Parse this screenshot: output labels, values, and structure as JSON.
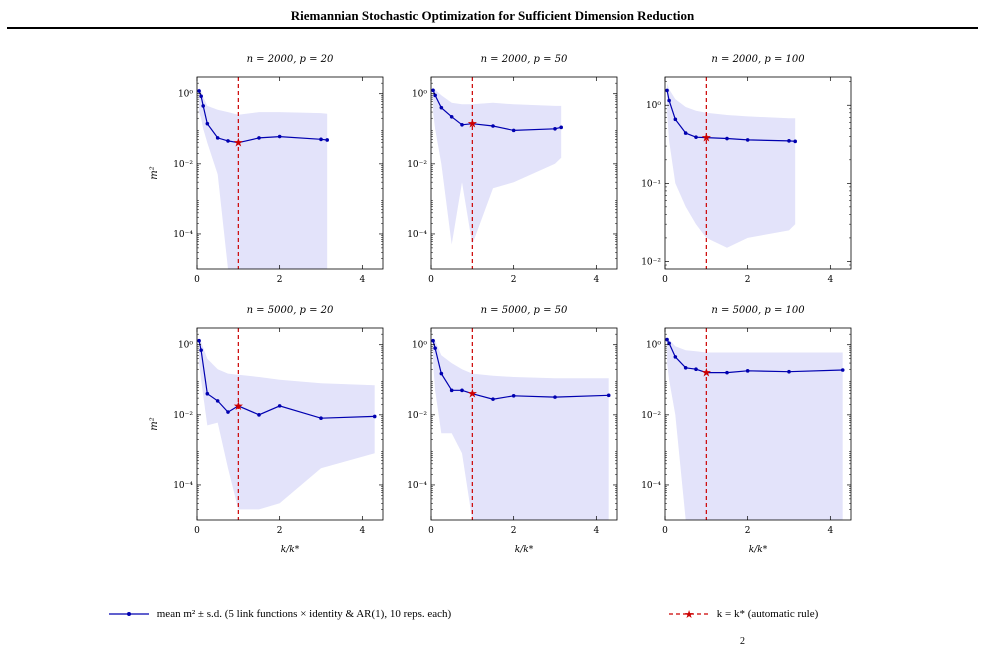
{
  "page": {
    "title": "Riemannian Stochastic Optimization for Sufficient Dimension Reduction",
    "bottom_fragment": "2"
  },
  "colors": {
    "series_line": "#0000b0",
    "band_fill": "#e3e3fa",
    "reference_line": "#cc0000"
  },
  "legend": {
    "mean_label": "mean m² ± s.d. (5 link functions × identity & AR(1), 10 reps. each)",
    "ref_label": "k = k* (automatic rule)"
  },
  "chart_data": [
    {
      "type": "line",
      "title": "n = 2000,  p = 20",
      "ylabel": "m²",
      "xlabel": "",
      "yscale": "log",
      "ylim": [
        1e-05,
        3
      ],
      "xlim": [
        0,
        4.5
      ],
      "xticks": [
        0,
        2,
        4
      ],
      "yticks": [
        1,
        0.01,
        0.0001
      ],
      "ytick_labels": [
        "10⁰",
        "10⁻²",
        "10⁻⁴"
      ],
      "reference_x": 1,
      "series": [
        {
          "x": [
            0.05,
            0.1,
            0.15,
            0.25,
            0.5,
            0.75,
            1,
            1.5,
            2,
            3,
            3.15
          ],
          "y": [
            1.2,
            0.85,
            0.45,
            0.14,
            0.055,
            0.045,
            0.04,
            0.055,
            0.06,
            0.05,
            0.048
          ],
          "lower": [
            0.3,
            0.2,
            0.1,
            0.04,
            0.005,
            1e-05,
            1e-05,
            1e-05,
            1e-05,
            1e-05,
            1e-05
          ],
          "upper": [
            1.5,
            1.2,
            0.8,
            0.45,
            0.35,
            0.3,
            0.25,
            0.3,
            0.3,
            0.28,
            0.27
          ]
        }
      ]
    },
    {
      "type": "line",
      "title": "n = 2000,  p = 50",
      "ylabel": "",
      "xlabel": "",
      "yscale": "log",
      "ylim": [
        1e-05,
        3
      ],
      "xlim": [
        0,
        4.5
      ],
      "xticks": [
        0,
        2,
        4
      ],
      "yticks": [
        1,
        0.01,
        0.0001
      ],
      "ytick_labels": [
        "10⁰",
        "10⁻²",
        "10⁻⁴"
      ],
      "reference_x": 1,
      "series": [
        {
          "x": [
            0.05,
            0.1,
            0.25,
            0.5,
            0.75,
            1,
            1.5,
            2,
            3,
            3.15
          ],
          "y": [
            1.25,
            0.9,
            0.4,
            0.22,
            0.13,
            0.14,
            0.12,
            0.09,
            0.1,
            0.11
          ],
          "lower": [
            0.3,
            0.1,
            0.01,
            5e-05,
            0.003,
            5e-05,
            0.002,
            0.003,
            0.01,
            0.015
          ],
          "upper": [
            1.5,
            1.3,
            0.9,
            0.55,
            0.5,
            0.5,
            0.55,
            0.5,
            0.45,
            0.45
          ]
        }
      ]
    },
    {
      "type": "line",
      "title": "n = 2000,  p = 100",
      "ylabel": "",
      "xlabel": "",
      "yscale": "log",
      "ylim": [
        0.008,
        2.3
      ],
      "xlim": [
        0,
        4.5
      ],
      "xticks": [
        0,
        2,
        4
      ],
      "yticks": [
        1,
        0.1,
        0.01
      ],
      "ytick_labels": [
        "10⁰",
        "10⁻¹",
        "10⁻²"
      ],
      "reference_x": 1,
      "series": [
        {
          "x": [
            0.05,
            0.1,
            0.25,
            0.5,
            0.75,
            1,
            1.5,
            2,
            3,
            3.15
          ],
          "y": [
            1.55,
            1.15,
            0.66,
            0.44,
            0.39,
            0.385,
            0.375,
            0.36,
            0.35,
            0.345
          ],
          "lower": [
            0.8,
            0.35,
            0.1,
            0.05,
            0.03,
            0.02,
            0.015,
            0.02,
            0.025,
            0.03
          ],
          "upper": [
            1.9,
            1.6,
            1.2,
            0.95,
            0.85,
            0.8,
            0.75,
            0.72,
            0.68,
            0.68
          ]
        }
      ]
    },
    {
      "type": "line",
      "title": "n = 5000,  p = 20",
      "ylabel": "m²",
      "xlabel": "k/k*",
      "yscale": "log",
      "ylim": [
        1e-05,
        3
      ],
      "xlim": [
        0,
        4.5
      ],
      "xticks": [
        0,
        2,
        4
      ],
      "yticks": [
        1,
        0.01,
        0.0001
      ],
      "ytick_labels": [
        "10⁰",
        "10⁻²",
        "10⁻⁴"
      ],
      "reference_x": 1,
      "series": [
        {
          "x": [
            0.05,
            0.1,
            0.25,
            0.5,
            0.75,
            1,
            1.5,
            2,
            3,
            4.3
          ],
          "y": [
            1.3,
            0.7,
            0.04,
            0.025,
            0.012,
            0.018,
            0.01,
            0.018,
            0.008,
            0.009
          ],
          "lower": [
            0.3,
            0.1,
            0.005,
            0.006,
            0.0003,
            2e-05,
            2e-05,
            3e-05,
            0.0003,
            0.0008
          ],
          "upper": [
            1.5,
            1.2,
            0.4,
            0.2,
            0.15,
            0.14,
            0.12,
            0.1,
            0.08,
            0.07
          ]
        }
      ]
    },
    {
      "type": "line",
      "title": "n = 5000,  p = 50",
      "ylabel": "",
      "xlabel": "k/k*",
      "yscale": "log",
      "ylim": [
        1e-05,
        3
      ],
      "xlim": [
        0,
        4.5
      ],
      "xticks": [
        0,
        2,
        4
      ],
      "yticks": [
        1,
        0.01,
        0.0001
      ],
      "ytick_labels": [
        "10⁰",
        "10⁻²",
        "10⁻⁴"
      ],
      "reference_x": 1,
      "series": [
        {
          "x": [
            0.05,
            0.1,
            0.25,
            0.5,
            0.75,
            1,
            1.5,
            2,
            3,
            4.3
          ],
          "y": [
            1.3,
            0.8,
            0.15,
            0.05,
            0.05,
            0.04,
            0.028,
            0.035,
            0.032,
            0.036
          ],
          "lower": [
            0.3,
            0.05,
            0.003,
            0.003,
            0.0008,
            1e-05,
            1e-05,
            1e-05,
            1e-05,
            1e-05
          ],
          "upper": [
            1.5,
            1.3,
            0.5,
            0.3,
            0.2,
            0.15,
            0.13,
            0.12,
            0.11,
            0.11
          ]
        }
      ]
    },
    {
      "type": "line",
      "title": "n = 5000,  p = 100",
      "ylabel": "",
      "xlabel": "k/k*",
      "yscale": "log",
      "ylim": [
        1e-05,
        3
      ],
      "xlim": [
        0,
        4.5
      ],
      "xticks": [
        0,
        2,
        4
      ],
      "yticks": [
        1,
        0.01,
        0.0001
      ],
      "ytick_labels": [
        "10⁰",
        "10⁻²",
        "10⁻⁴"
      ],
      "reference_x": 1,
      "series": [
        {
          "x": [
            0.05,
            0.1,
            0.25,
            0.5,
            0.75,
            1,
            1.5,
            2,
            3,
            4.3
          ],
          "y": [
            1.4,
            1.1,
            0.45,
            0.22,
            0.2,
            0.16,
            0.16,
            0.18,
            0.17,
            0.19
          ],
          "lower": [
            0.3,
            0.1,
            0.01,
            1e-05,
            1e-05,
            1e-05,
            1e-05,
            1e-05,
            1e-05,
            1e-05
          ],
          "upper": [
            1.6,
            1.4,
            0.9,
            0.7,
            0.65,
            0.6,
            0.6,
            0.6,
            0.6,
            0.6
          ]
        }
      ]
    }
  ]
}
